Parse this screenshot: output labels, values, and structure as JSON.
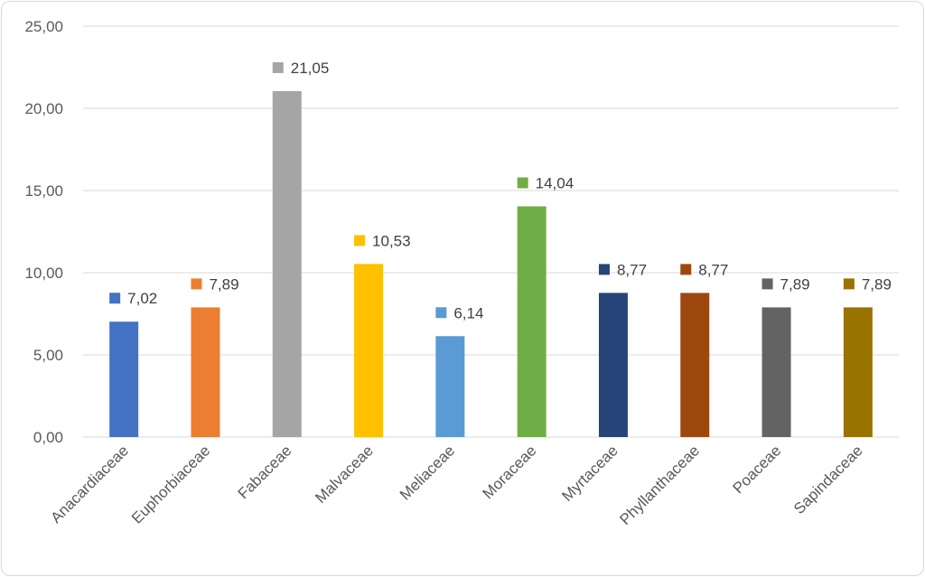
{
  "chart_data": {
    "type": "bar",
    "title": "",
    "xlabel": "",
    "ylabel": "",
    "ylim": [
      0,
      25
    ],
    "yticks": [
      0,
      5,
      10,
      15,
      20,
      25
    ],
    "ytick_labels": [
      "0,00",
      "5,00",
      "10,00",
      "15,00",
      "20,00",
      "25,00"
    ],
    "grid": true,
    "legend": "none",
    "categories": [
      "Anacardiaceae",
      "Euphorbiaceae",
      "Fabaceae",
      "Malvaceae",
      "Meliaceae",
      "Moraceae",
      "Myrtaceae",
      "Phyllanthaceae",
      "Poaceae",
      "Sapindaceae"
    ],
    "values": [
      7.02,
      7.89,
      21.05,
      10.53,
      6.14,
      14.04,
      8.77,
      8.77,
      7.89,
      7.89
    ],
    "value_labels": [
      "7,02",
      "7,89",
      "21,05",
      "10,53",
      "6,14",
      "14,04",
      "8,77",
      "8,77",
      "7,89",
      "7,89"
    ],
    "colors": [
      "#4472c4",
      "#ed7d31",
      "#a5a5a5",
      "#ffc000",
      "#5b9bd5",
      "#70ad47",
      "#264478",
      "#9e480e",
      "#636363",
      "#997300"
    ]
  }
}
